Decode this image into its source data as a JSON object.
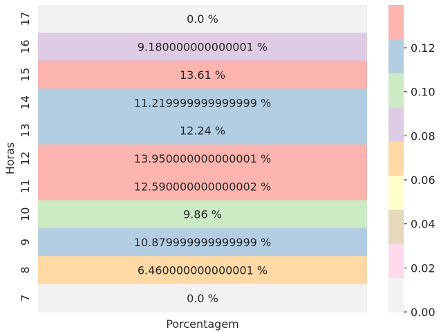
{
  "chart_data": {
    "type": "heatmap",
    "xlabel": "Porcentagem",
    "ylabel": "Horas",
    "rows": [
      "17",
      "16",
      "15",
      "14",
      "13",
      "12",
      "11",
      "10",
      "9",
      "8",
      "7"
    ],
    "values": [
      0.0,
      0.0918,
      0.1361,
      0.1122,
      0.1224,
      0.1395,
      0.1259,
      0.0986,
      0.1088,
      0.0646,
      0.0
    ],
    "annotations": [
      "0.0 %",
      "9.180000000000001 %",
      "13.61 %",
      "11.219999999999999 %",
      "12.24 %",
      "13.950000000000001 %",
      "12.590000000000002 %",
      "9.86 %",
      "10.879999999999999 %",
      "6.460000000000001 %",
      "0.0 %"
    ],
    "colorbar": {
      "vmin": 0.0,
      "vmax": 0.1395,
      "ticks": [
        0.0,
        0.02,
        0.04,
        0.06,
        0.08,
        0.1,
        0.12
      ],
      "tick_labels": [
        "0.00",
        "0.02",
        "0.04",
        "0.06",
        "0.08",
        "0.10",
        "0.12"
      ],
      "palette": [
        "#f2f2f2",
        "#fddaec",
        "#e5d8bd",
        "#ffffcc",
        "#fed9a6",
        "#decbe4",
        "#ccebc5",
        "#b3cde3",
        "#fbb4ae"
      ]
    }
  }
}
